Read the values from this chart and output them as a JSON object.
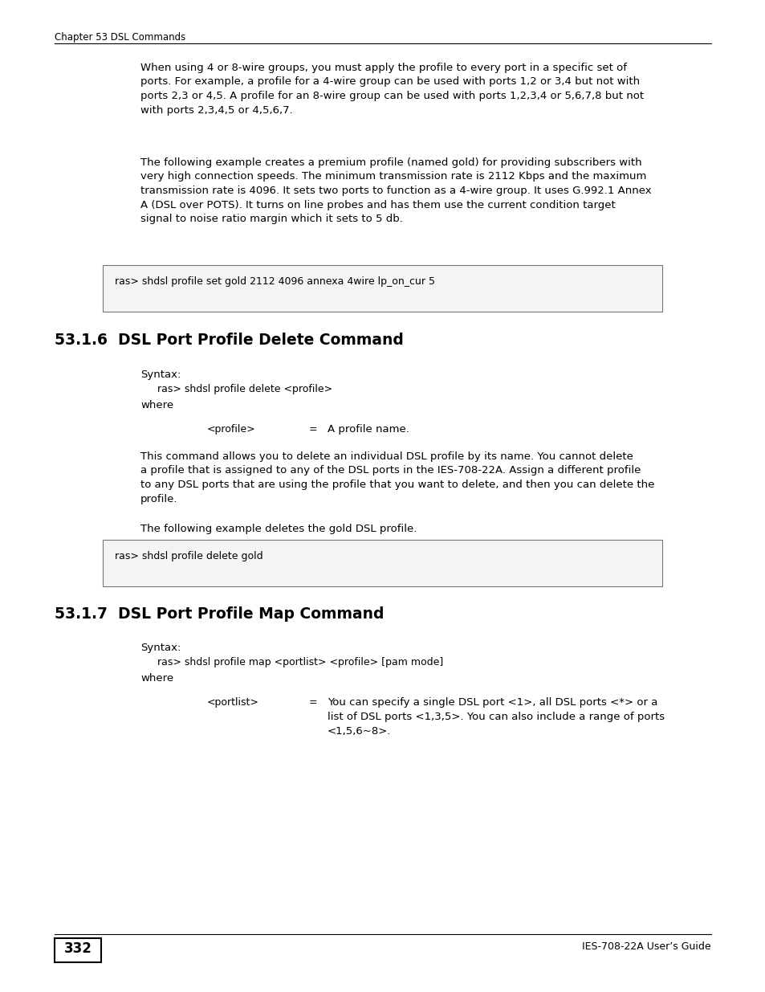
{
  "page_bg": "#ffffff",
  "header_text": "Chapter 53 DSL Commands",
  "footer_page_num": "332",
  "footer_right": "IES-708-22A User’s Guide",
  "para1": "When using 4 or 8-wire groups, you must apply the profile to every port in a specific set of\nports. For example, a profile for a 4-wire group can be used with ports 1,2 or 3,4 but not with\nports 2,3 or 4,5. A profile for an 8-wire group can be used with ports 1,2,3,4 or 5,6,7,8 but not\nwith ports 2,3,4,5 or 4,5,6,7.",
  "para2": "The following example creates a premium profile (named gold) for providing subscribers with\nvery high connection speeds. The minimum transmission rate is 2112 Kbps and the maximum\ntransmission rate is 4096. It sets two ports to function as a 4-wire group. It uses G.992.1 Annex\nA (DSL over POTS). It turns on line probes and has them use the current condition target\nsignal to noise ratio margin which it sets to 5 db.",
  "code1": "ras> shdsl profile set gold 2112 4096 annexa 4wire lp_on_cur 5",
  "section1_num": "53.1.6",
  "section1_title": "DSL Port Profile Delete Command",
  "syntax_label": "Syntax:",
  "syntax1": "ras> shdsl profile delete <profile>",
  "where1": "where",
  "param1_name": "<profile>",
  "param1_eq": "=",
  "param1_desc": "A profile name.",
  "para3": "This command allows you to delete an individual DSL profile by its name. You cannot delete\na profile that is assigned to any of the DSL ports in the IES-708-22A. Assign a different profile\nto any DSL ports that are using the profile that you want to delete, and then you can delete the\nprofile.",
  "para4": "The following example deletes the gold DSL profile.",
  "code2": "ras> shdsl profile delete gold",
  "section2_num": "53.1.7",
  "section2_title": "DSL Port Profile Map Command",
  "syntax_label2": "Syntax:",
  "syntax2": "ras> shdsl profile map <portlist> <profile> [pam mode]",
  "where2": "where",
  "param2_name": "<portlist>",
  "param2_eq": "=",
  "param2_desc": "You can specify a single DSL port <1>, all DSL ports <*> or a\nlist of DSL ports <1,3,5>. You can also include a range of ports\n<1,5,6~8>."
}
